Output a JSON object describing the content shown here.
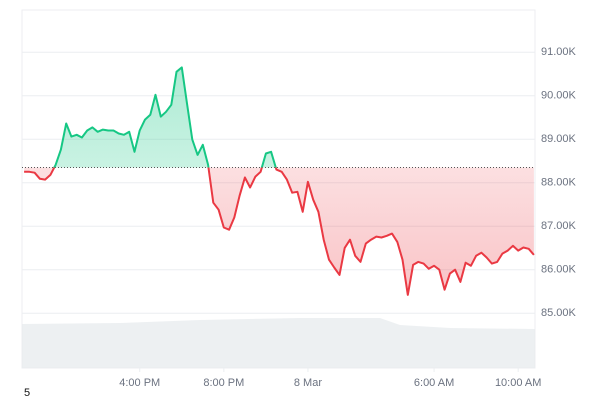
{
  "chart_data": {
    "type": "line",
    "x": [
      10.5,
      10.75,
      11,
      11.25,
      11.5,
      11.75,
      12,
      12.25,
      12.5,
      12.75,
      13,
      13.25,
      13.5,
      13.75,
      14,
      14.25,
      14.5,
      14.75,
      15,
      15.25,
      15.5,
      15.75,
      16,
      16.25,
      16.5,
      16.75,
      17,
      17.25,
      17.5,
      17.75,
      18,
      18.25,
      18.5,
      18.75,
      19,
      19.25,
      19.5,
      19.75,
      20,
      20.25,
      20.5,
      20.75,
      21,
      21.25,
      21.5,
      21.75,
      22,
      22.25,
      22.5,
      22.75,
      23,
      23.25,
      23.5,
      23.75,
      24,
      24.25,
      24.5,
      24.75,
      25,
      25.25,
      25.5,
      25.75,
      26,
      26.25,
      26.5,
      26.75,
      27,
      27.25,
      27.5,
      27.75,
      28,
      28.25,
      28.5,
      28.75,
      29,
      29.25,
      29.5,
      29.75,
      30,
      30.25,
      30.5,
      30.75,
      31,
      31.25,
      31.5,
      31.75,
      32,
      32.25,
      32.5,
      32.75,
      33,
      33.25,
      33.5,
      33.75,
      34,
      34.25,
      34.5,
      34.75
    ],
    "values": [
      88250,
      88250,
      88230,
      88090,
      88070,
      88180,
      88410,
      88760,
      89360,
      89060,
      89100,
      89040,
      89200,
      89270,
      89170,
      89220,
      89200,
      89200,
      89130,
      89100,
      89170,
      88710,
      89200,
      89450,
      89560,
      90020,
      89520,
      89630,
      89790,
      90550,
      90650,
      89820,
      88990,
      88640,
      88870,
      88410,
      87540,
      87380,
      86970,
      86920,
      87200,
      87700,
      88120,
      87890,
      88140,
      88250,
      88670,
      88710,
      88300,
      88250,
      88070,
      87770,
      87790,
      87330,
      88020,
      87610,
      87330,
      86690,
      86230,
      86050,
      85880,
      86500,
      86690,
      86320,
      86180,
      86600,
      86690,
      86760,
      86740,
      86780,
      86830,
      86640,
      86230,
      85420,
      86110,
      86180,
      86140,
      86020,
      86090,
      86000,
      85540,
      85910,
      86000,
      85720,
      86160,
      86090,
      86320,
      86390,
      86280,
      86140,
      86180,
      86370,
      86440,
      86550,
      86440,
      86510,
      86480,
      86340
    ],
    "baseline": 88350,
    "color_up": "#16c784",
    "color_down": "#ea3943",
    "xlim": [
      10.4,
      34.8
    ],
    "xticks": [
      {
        "value": 16,
        "label": "4:00 PM"
      },
      {
        "value": 20,
        "label": "8:00 PM"
      },
      {
        "value": 24,
        "label": "8 Mar"
      },
      {
        "value": 30,
        "label": "6:00 AM"
      },
      {
        "value": 34,
        "label": "10:00 AM"
      }
    ],
    "ylim": [
      83740,
      91970
    ],
    "yticks": [
      {
        "value": 85000,
        "label": "85.00K"
      },
      {
        "value": 86000,
        "label": "86.00K"
      },
      {
        "value": 87000,
        "label": "87.00K"
      },
      {
        "value": 88000,
        "label": "88.00K"
      },
      {
        "value": 89000,
        "label": "89.00K"
      },
      {
        "value": 90000,
        "label": "90.00K"
      },
      {
        "value": 91000,
        "label": "91.00K"
      }
    ],
    "grid": true
  },
  "footer": "5"
}
